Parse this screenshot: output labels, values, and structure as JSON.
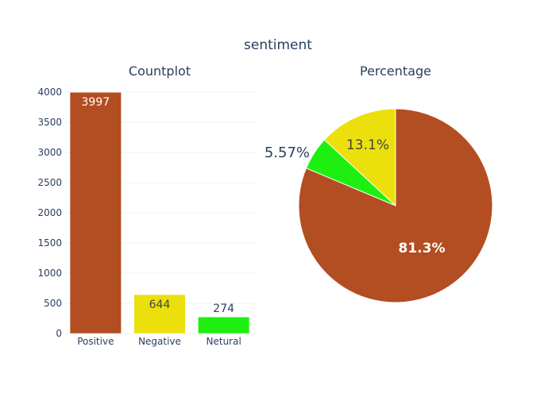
{
  "figure": {
    "title": "sentiment"
  },
  "chart_data": [
    {
      "type": "bar",
      "title": "Countplot",
      "categories": [
        "Positive",
        "Negative",
        "Netural"
      ],
      "values": [
        3997,
        644,
        274
      ],
      "value_labels": [
        "3997",
        "644",
        "274"
      ],
      "colors": [
        "#b34d22",
        "#ebe00c",
        "#1fef10"
      ],
      "ylim": [
        0,
        4000
      ],
      "yticks": [
        0,
        500,
        1000,
        1500,
        2000,
        2500,
        3000,
        3500,
        4000
      ],
      "ytick_labels": [
        "0",
        "500",
        "1000",
        "1500",
        "2000",
        "2500",
        "3000",
        "3500",
        "4000"
      ],
      "grid": true
    },
    {
      "type": "pie",
      "title": "Percentage",
      "slices": [
        {
          "label": "Positive",
          "value": 81.3,
          "text": "81.3%",
          "color": "#b34d22"
        },
        {
          "label": "Netural",
          "value": 5.57,
          "text": "5.57%",
          "color": "#1fef10"
        },
        {
          "label": "Negative",
          "value": 13.1,
          "text": "13.1%",
          "color": "#ebe00c"
        }
      ]
    }
  ]
}
